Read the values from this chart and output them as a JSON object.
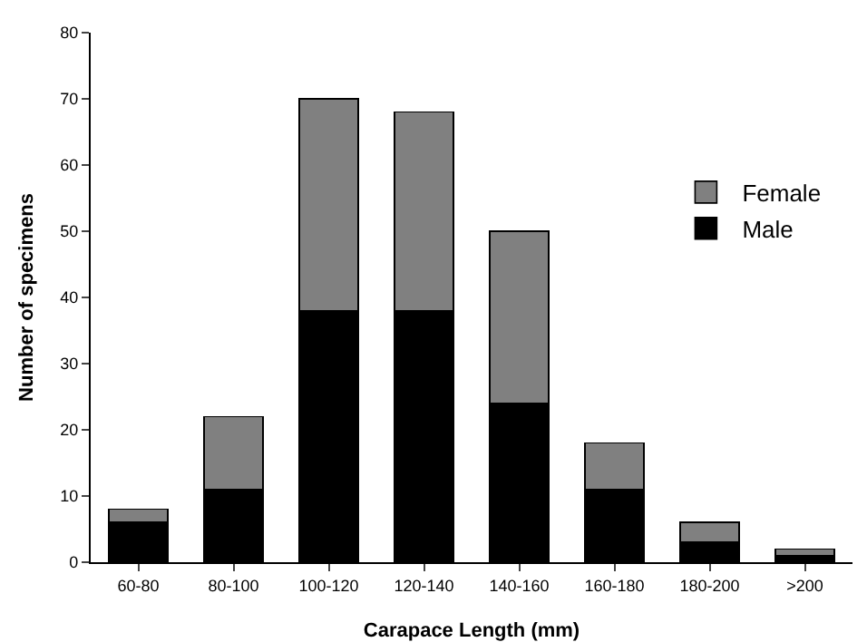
{
  "chart_data": {
    "type": "bar",
    "stacked": true,
    "xlabel": "Carapace Length (mm)",
    "ylabel": "Number of specimens",
    "categories": [
      "60-80",
      "80-100",
      "100-120",
      "120-140",
      "140-160",
      "160-180",
      "180-200",
      ">200"
    ],
    "series": [
      {
        "name": "Male",
        "color": "#000000",
        "values": [
          6,
          11,
          38,
          38,
          24,
          11,
          3,
          1
        ]
      },
      {
        "name": "Female",
        "color": "#808080",
        "values": [
          2,
          11,
          32,
          30,
          26,
          7,
          3,
          1
        ]
      }
    ],
    "ylim": [
      0,
      80
    ],
    "yticks": [
      0,
      10,
      20,
      30,
      40,
      50,
      60,
      70,
      80
    ],
    "grid": false,
    "legend": "right"
  }
}
